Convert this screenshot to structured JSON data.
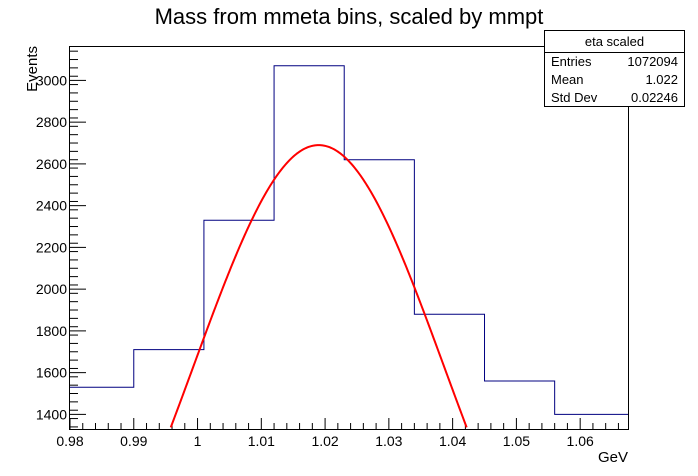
{
  "chart_data": {
    "type": "histogram",
    "title": "Mass from mmeta bins, scaled by mmpt",
    "xlabel": "GeV",
    "ylabel": "Events",
    "xlim": [
      0.98,
      1.0675
    ],
    "ylim": [
      1330,
      3160
    ],
    "x_ticks": [
      0.98,
      0.99,
      1.0,
      1.01,
      1.02,
      1.03,
      1.04,
      1.05,
      1.06
    ],
    "x_tick_labels": [
      "0.98",
      "0.99",
      "1",
      "1.01",
      "1.02",
      "1.03",
      "1.04",
      "1.05",
      "1.06"
    ],
    "y_ticks": [
      1400,
      1600,
      1800,
      2000,
      2200,
      2400,
      2600,
      2800,
      3000
    ],
    "y_tick_labels": [
      "1400",
      "1600",
      "1800",
      "2000",
      "2200",
      "2400",
      "2600",
      "2800",
      "3000"
    ],
    "bins": [
      {
        "x0": 0.98,
        "x1": 0.99,
        "value": 1530
      },
      {
        "x0": 0.99,
        "x1": 1.001,
        "value": 1710
      },
      {
        "x0": 1.001,
        "x1": 1.012,
        "value": 2330
      },
      {
        "x0": 1.012,
        "x1": 1.023,
        "value": 3070
      },
      {
        "x0": 1.023,
        "x1": 1.034,
        "value": 2620
      },
      {
        "x0": 1.034,
        "x1": 1.045,
        "value": 1880
      },
      {
        "x0": 1.045,
        "x1": 1.056,
        "value": 1560
      },
      {
        "x0": 1.056,
        "x1": 1.0675,
        "value": 1400
      }
    ],
    "histogram_color": "#000080",
    "fit": {
      "type": "gaussian",
      "amplitude": 2690,
      "mean": 1.019,
      "sigma": 0.01963,
      "color": "#ff0000"
    },
    "stats_box": {
      "title": "eta scaled",
      "entries_label": "Entries",
      "entries": "1072094",
      "mean_label": "Mean",
      "mean": "1.022",
      "std_label": "Std Dev",
      "std": "0.02246"
    }
  }
}
